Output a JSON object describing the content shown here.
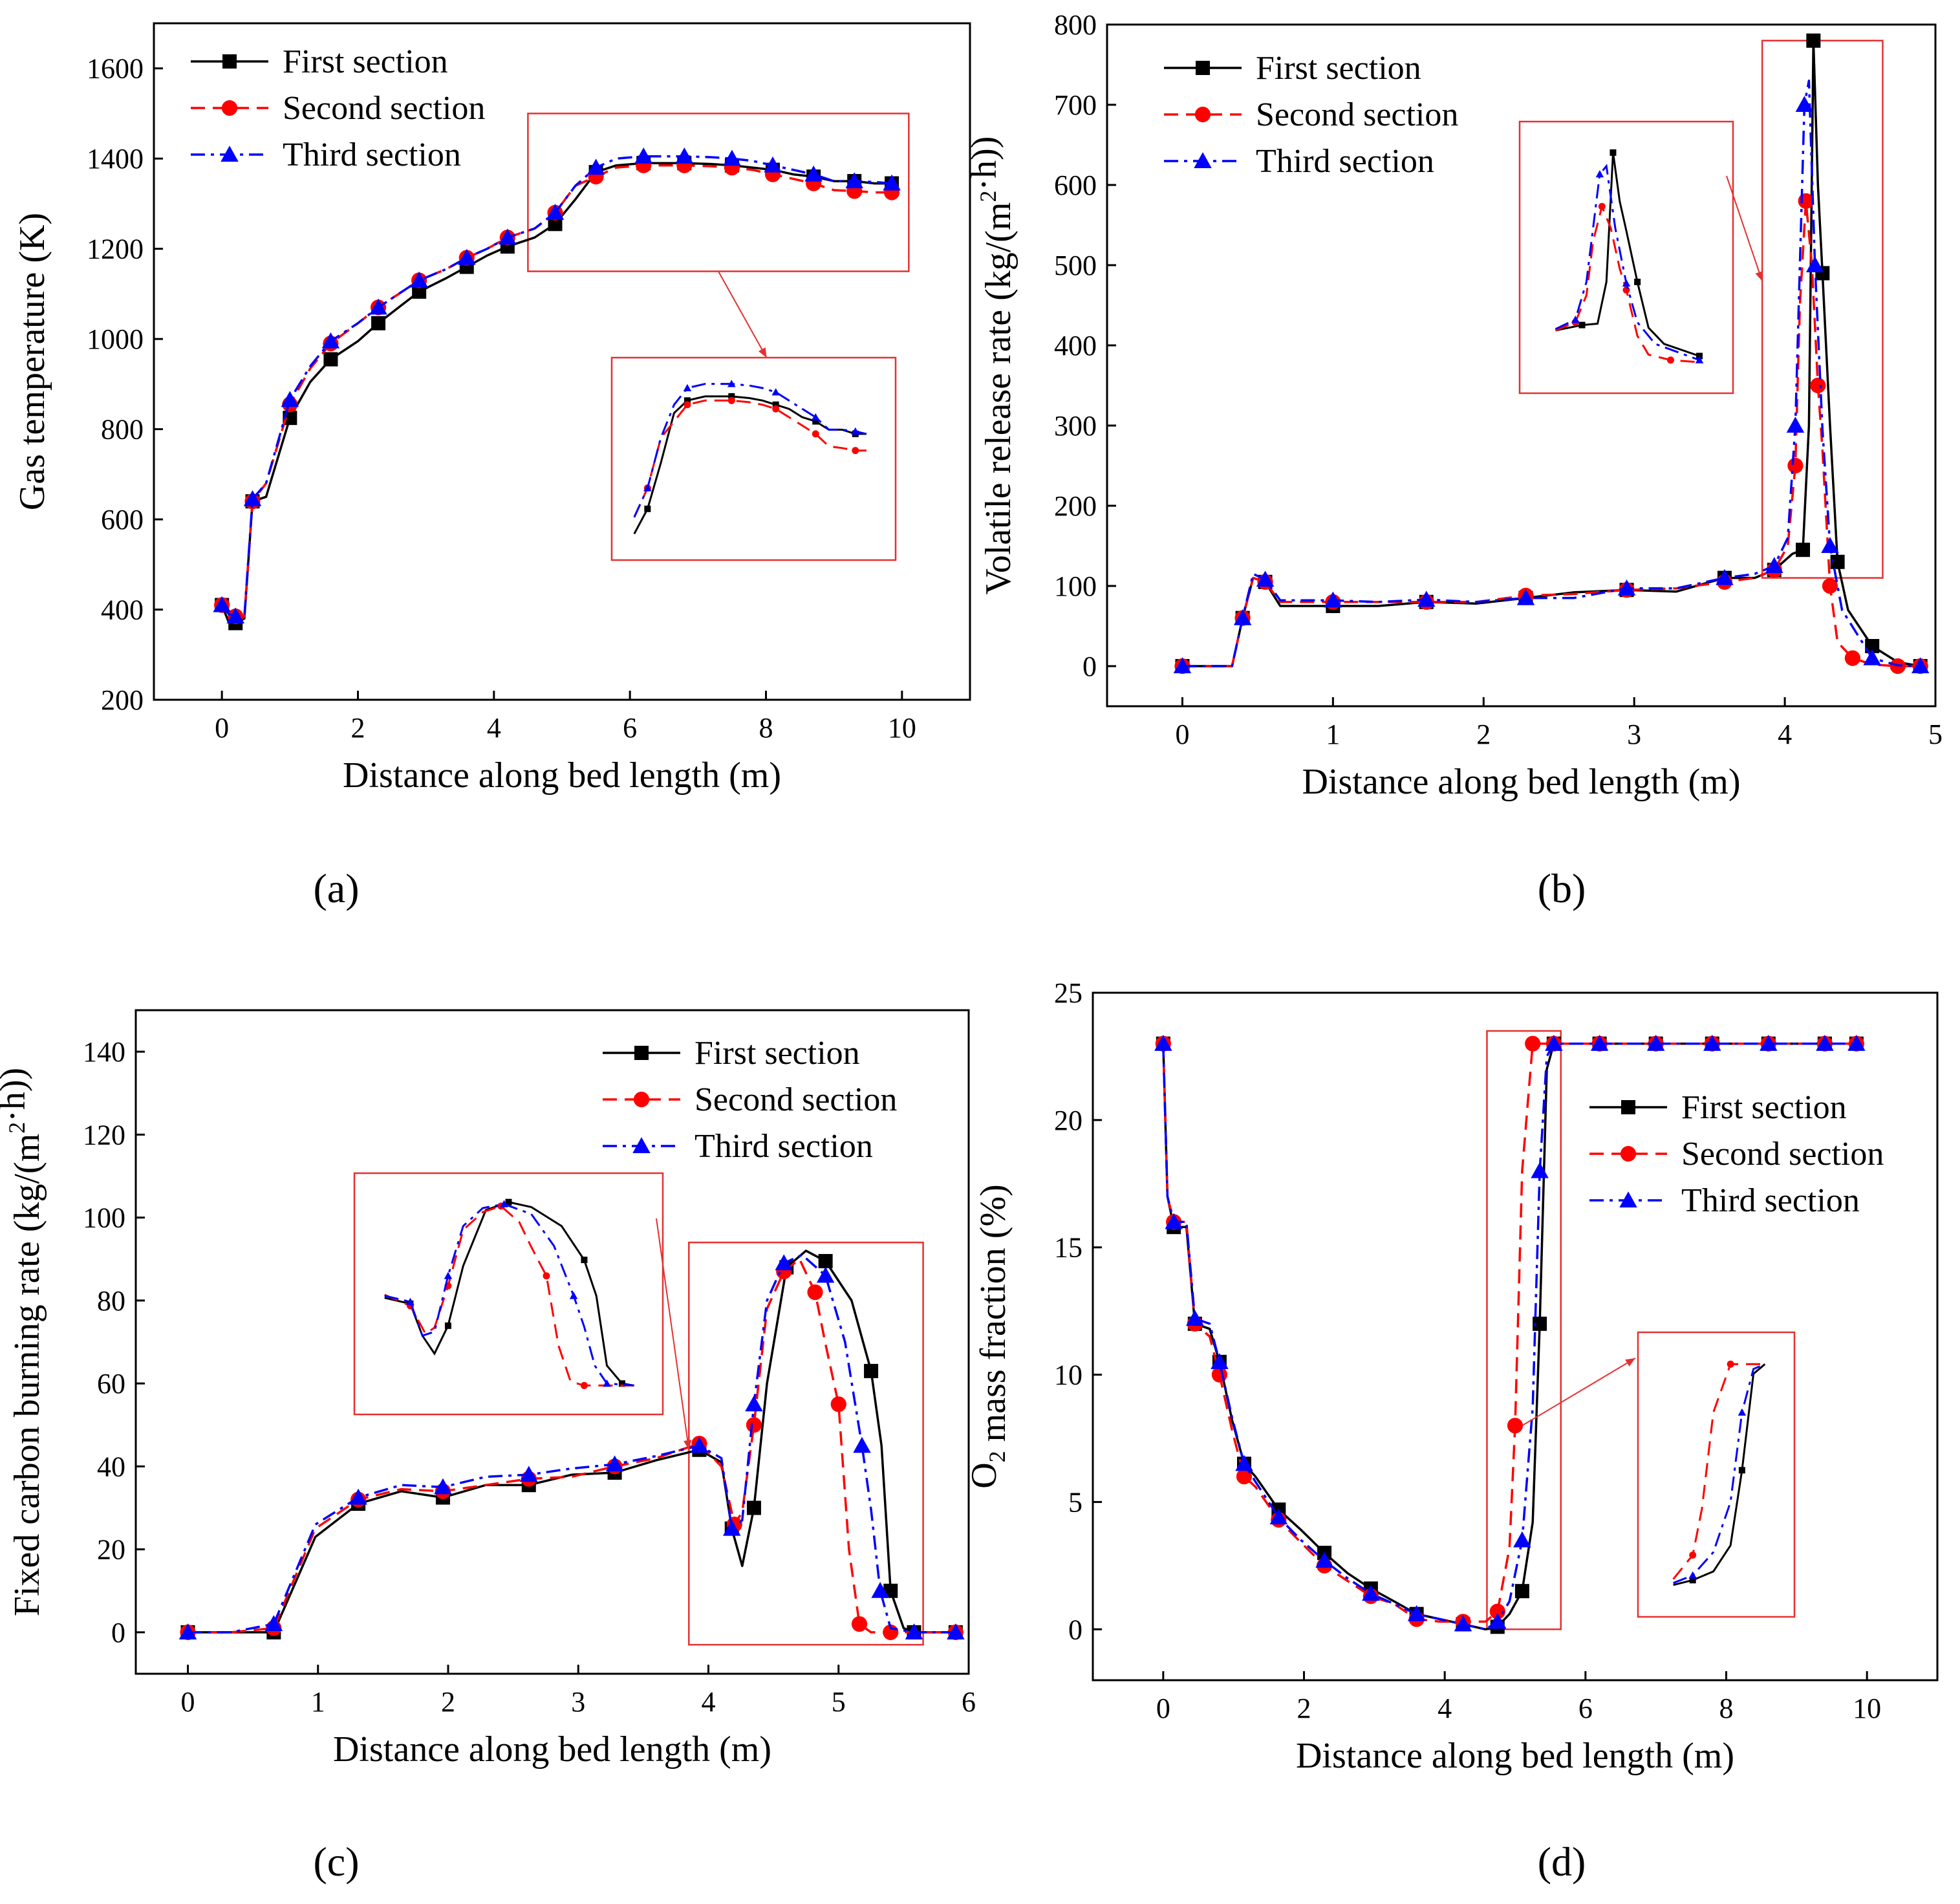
{
  "figure": {
    "caption_style": "four-panel line chart figure"
  },
  "chart_data": [
    {
      "id": "a",
      "type": "line",
      "panel_label": "(a)",
      "title": "",
      "xlabel": "Distance along bed length (m)",
      "ylabel": "Gas temperature (K)",
      "ylabel_parts": [
        {
          "t": "Gas temperature (K)"
        }
      ],
      "xlim": [
        -1,
        11
      ],
      "ylim": [
        200,
        1700
      ],
      "xticks": [
        0,
        2,
        4,
        6,
        8,
        10
      ],
      "yticks": [
        200,
        400,
        600,
        800,
        1000,
        1200,
        1400,
        1600
      ],
      "legend": {
        "position": "top-left",
        "entries": [
          "First section",
          "Second section",
          "Third section"
        ]
      },
      "series": [
        {
          "name": "First section",
          "color": "#000000",
          "dash": "solid",
          "marker": "square",
          "x": [
            0,
            0.1,
            0.2,
            0.33,
            0.45,
            0.65,
            1,
            1.3,
            1.6,
            2,
            2.3,
            2.6,
            2.9,
            3.3,
            3.6,
            3.9,
            4.2,
            4.6,
            4.9,
            5.2,
            5.5,
            5.8,
            6.2,
            6.5,
            6.8,
            7.2,
            7.5,
            7.8,
            8.1,
            8.4,
            8.7,
            9,
            9.3,
            9.6,
            9.85
          ],
          "y": [
            410,
            372,
            370,
            380,
            640,
            650,
            825,
            905,
            955,
            995,
            1035,
            1070,
            1105,
            1135,
            1160,
            1185,
            1205,
            1225,
            1255,
            1310,
            1370,
            1385,
            1390,
            1390,
            1390,
            1388,
            1385,
            1380,
            1375,
            1365,
            1360,
            1350,
            1350,
            1345,
            1345
          ]
        },
        {
          "name": "Second section",
          "color": "#ff0000",
          "dash": "dash",
          "marker": "circle",
          "x": [
            0,
            0.1,
            0.2,
            0.33,
            0.45,
            0.65,
            1,
            1.3,
            1.6,
            2,
            2.3,
            2.6,
            2.9,
            3.3,
            3.6,
            3.9,
            4.2,
            4.6,
            4.9,
            5.2,
            5.5,
            5.8,
            6.2,
            6.5,
            6.8,
            7.2,
            7.5,
            7.8,
            8.1,
            8.4,
            8.7,
            9,
            9.3,
            9.6,
            9.85
          ],
          "y": [
            410,
            390,
            385,
            385,
            640,
            680,
            855,
            935,
            990,
            1035,
            1070,
            1100,
            1130,
            1155,
            1180,
            1200,
            1225,
            1245,
            1280,
            1340,
            1360,
            1380,
            1385,
            1385,
            1385,
            1383,
            1380,
            1375,
            1365,
            1355,
            1345,
            1330,
            1328,
            1325,
            1325
          ]
        },
        {
          "name": "Third section",
          "color": "#0000ff",
          "dash": "dashdot",
          "marker": "triangle",
          "x": [
            0,
            0.1,
            0.2,
            0.33,
            0.45,
            0.65,
            1,
            1.3,
            1.6,
            2,
            2.3,
            2.6,
            2.9,
            3.3,
            3.6,
            3.9,
            4.2,
            4.6,
            4.9,
            5.2,
            5.5,
            5.8,
            6.2,
            6.5,
            6.8,
            7.2,
            7.5,
            7.8,
            8.1,
            8.4,
            8.7,
            9,
            9.3,
            9.6,
            9.85
          ],
          "y": [
            410,
            390,
            385,
            385,
            645,
            680,
            865,
            940,
            995,
            1035,
            1070,
            1100,
            1130,
            1155,
            1180,
            1200,
            1225,
            1245,
            1280,
            1340,
            1380,
            1400,
            1405,
            1405,
            1405,
            1403,
            1400,
            1395,
            1385,
            1375,
            1365,
            1350,
            1350,
            1348,
            1345
          ]
        }
      ],
      "highlight": {
        "x": [
          4.5,
          10.1
        ],
        "y": [
          1150,
          1500
        ]
      }
    },
    {
      "id": "b",
      "type": "line",
      "panel_label": "(b)",
      "title": "",
      "xlabel": "Distance along bed length (m)",
      "ylabel": "Volatile release rate (kg/(m2·h))",
      "ylabel_parts": [
        {
          "t": "Volatile release rate (kg/(m"
        },
        {
          "t": "2",
          "sup": true
        },
        {
          "t": "·h))"
        }
      ],
      "xlim": [
        -0.5,
        5
      ],
      "ylim": [
        -50,
        800
      ],
      "xticks": [
        0,
        1,
        2,
        3,
        4,
        5
      ],
      "yticks": [
        0,
        100,
        200,
        300,
        400,
        500,
        600,
        700,
        800
      ],
      "legend": {
        "position": "top-left",
        "entries": [
          "First section",
          "Second section",
          "Third section"
        ]
      },
      "series": [
        {
          "name": "First section",
          "color": "#000000",
          "dash": "solid",
          "marker": "square",
          "x": [
            0,
            0.33,
            0.4,
            0.47,
            0.55,
            0.65,
            1,
            1.3,
            1.62,
            1.95,
            2.28,
            2.6,
            2.95,
            3.28,
            3.6,
            3.8,
            3.93,
            4.05,
            4.12,
            4.16,
            4.19,
            4.22,
            4.25,
            4.3,
            4.35,
            4.42,
            4.58,
            4.75,
            4.9
          ],
          "y": [
            0,
            0,
            60,
            110,
            105,
            75,
            75,
            75,
            80,
            78,
            85,
            92,
            95,
            93,
            110,
            110,
            120,
            140,
            145,
            300,
            780,
            600,
            490,
            300,
            130,
            70,
            25,
            5,
            0
          ]
        },
        {
          "name": "Second section",
          "color": "#ff0000",
          "dash": "dash",
          "marker": "circle",
          "x": [
            0,
            0.33,
            0.4,
            0.47,
            0.55,
            0.65,
            1,
            1.3,
            1.62,
            1.95,
            2.28,
            2.6,
            2.95,
            3.28,
            3.6,
            3.8,
            3.93,
            4.02,
            4.07,
            4.1,
            4.14,
            4.18,
            4.22,
            4.25,
            4.3,
            4.35,
            4.45,
            4.58,
            4.75,
            4.9
          ],
          "y": [
            0,
            0,
            60,
            110,
            105,
            80,
            80,
            80,
            80,
            80,
            88,
            90,
            95,
            97,
            105,
            110,
            120,
            150,
            250,
            450,
            580,
            500,
            350,
            270,
            100,
            30,
            10,
            2,
            0,
            0
          ]
        },
        {
          "name": "Third section",
          "color": "#0000ff",
          "dash": "dashdot",
          "marker": "triangle",
          "x": [
            0,
            0.33,
            0.4,
            0.47,
            0.55,
            0.65,
            1,
            1.3,
            1.62,
            1.95,
            2.28,
            2.6,
            2.95,
            3.28,
            3.6,
            3.8,
            3.93,
            4.02,
            4.07,
            4.1,
            4.13,
            4.16,
            4.2,
            4.25,
            4.3,
            4.38,
            4.58,
            4.75,
            4.9
          ],
          "y": [
            0,
            0,
            60,
            115,
            108,
            82,
            82,
            80,
            83,
            80,
            85,
            85,
            97,
            97,
            110,
            115,
            125,
            160,
            300,
            500,
            700,
            730,
            500,
            295,
            150,
            70,
            10,
            1,
            0
          ]
        }
      ],
      "highlight": {
        "x": [
          3.85,
          4.65
        ],
        "y": [
          110,
          780
        ]
      }
    },
    {
      "id": "c",
      "type": "line",
      "panel_label": "(c)",
      "title": "",
      "xlabel": "Distance along bed length (m)",
      "ylabel": "Fixed carbon burning rate (kg/(m2·h))",
      "ylabel_parts": [
        {
          "t": "Fixed carbon burning rate (kg/(m"
        },
        {
          "t": "2",
          "sup": true
        },
        {
          "t": "·h))"
        }
      ],
      "xlim": [
        -0.4,
        6
      ],
      "ylim": [
        -10,
        150
      ],
      "xticks": [
        0,
        1,
        2,
        3,
        4,
        5,
        6
      ],
      "yticks": [
        0,
        20,
        40,
        60,
        80,
        100,
        120,
        140
      ],
      "legend": {
        "position": "top-right",
        "entries": [
          "First section",
          "Second section",
          "Third section"
        ]
      },
      "series": [
        {
          "name": "First section",
          "color": "#000000",
          "dash": "solid",
          "marker": "square",
          "x": [
            0,
            0.33,
            0.66,
            0.98,
            1.31,
            1.64,
            1.96,
            2.29,
            2.62,
            2.95,
            3.28,
            3.6,
            3.93,
            4.1,
            4.18,
            4.26,
            4.35,
            4.45,
            4.6,
            4.75,
            4.9,
            5.1,
            5.25,
            5.33,
            5.4,
            5.5,
            5.58,
            5.9
          ],
          "y": [
            0,
            0,
            0,
            23,
            31,
            34,
            32.5,
            35.5,
            35.5,
            38,
            38.5,
            41.5,
            44,
            41,
            25,
            16,
            30,
            60,
            88,
            92,
            89.5,
            80,
            63,
            45,
            10,
            1,
            0,
            0
          ]
        },
        {
          "name": "Second section",
          "color": "#ff0000",
          "dash": "dash",
          "marker": "circle",
          "x": [
            0,
            0.33,
            0.66,
            0.98,
            1.31,
            1.64,
            1.96,
            2.29,
            2.62,
            2.95,
            3.28,
            3.6,
            3.93,
            4.1,
            4.2,
            4.26,
            4.35,
            4.45,
            4.58,
            4.7,
            4.82,
            4.9,
            5.0,
            5.08,
            5.16,
            5.25,
            5.4,
            5.58,
            5.9
          ],
          "y": [
            0,
            0,
            1,
            25,
            32,
            34.5,
            34,
            35.5,
            37,
            37.5,
            40,
            42,
            45.5,
            40,
            26,
            29,
            50,
            78,
            87,
            90,
            82,
            69.5,
            55,
            20,
            2,
            0,
            0,
            0,
            0
          ]
        },
        {
          "name": "Third section",
          "color": "#0000ff",
          "dash": "dashdot",
          "marker": "triangle",
          "x": [
            0,
            0.33,
            0.66,
            0.98,
            1.31,
            1.64,
            1.96,
            2.29,
            2.62,
            2.95,
            3.28,
            3.6,
            3.93,
            4.1,
            4.18,
            4.26,
            4.35,
            4.45,
            4.58,
            4.72,
            4.9,
            5.05,
            5.18,
            5.25,
            5.32,
            5.4,
            5.58,
            5.9
          ],
          "y": [
            0,
            0,
            2,
            26,
            32.5,
            35.5,
            35,
            37.5,
            38,
            39.5,
            40.5,
            42.5,
            45,
            42,
            25,
            27,
            55,
            80,
            89,
            91,
            86,
            70,
            45,
            29.5,
            10,
            1,
            0,
            0
          ]
        }
      ],
      "highlight": {
        "x": [
          3.85,
          5.65
        ],
        "y": [
          -3,
          94
        ]
      }
    },
    {
      "id": "d",
      "type": "line",
      "panel_label": "(d)",
      "title": "",
      "xlabel": "Distance along bed length (m)",
      "ylabel": "O2 mass fraction (%)",
      "ylabel_parts": [
        {
          "t": "O"
        },
        {
          "t": "2",
          "sub": true
        },
        {
          "t": " mass fraction (%)"
        }
      ],
      "xlim": [
        -1,
        11
      ],
      "ylim": [
        -2,
        25
      ],
      "xticks": [
        0,
        2,
        4,
        6,
        8,
        10
      ],
      "yticks": [
        0,
        5,
        10,
        15,
        20,
        25
      ],
      "legend": {
        "position": "right",
        "entries": [
          "First section",
          "Second section",
          "Third section"
        ]
      },
      "series": [
        {
          "name": "First section",
          "color": "#000000",
          "dash": "solid",
          "marker": "square",
          "x": [
            0,
            0.06,
            0.15,
            0.33,
            0.45,
            0.66,
            0.8,
            0.98,
            1.15,
            1.31,
            1.64,
            1.96,
            2.29,
            2.62,
            2.95,
            3.28,
            3.6,
            3.93,
            4.26,
            4.58,
            4.75,
            4.92,
            5.1,
            5.25,
            5.35,
            5.45,
            5.55,
            5.9,
            6.2,
            6.6,
            7,
            7.4,
            7.8,
            8.2,
            8.6,
            9,
            9.4,
            9.85
          ],
          "y": [
            23,
            17,
            15.8,
            15.8,
            12,
            11.8,
            10.5,
            8.2,
            6.5,
            6,
            4.7,
            3.9,
            3,
            2.2,
            1.6,
            1.1,
            0.6,
            0.4,
            0.2,
            0,
            0.1,
            0.6,
            1.5,
            4.2,
            12,
            22,
            23,
            23,
            23,
            23,
            23,
            23,
            23,
            23,
            23,
            23,
            23,
            23
          ]
        },
        {
          "name": "Second section",
          "color": "#ff0000",
          "dash": "dash",
          "marker": "circle",
          "x": [
            0,
            0.06,
            0.15,
            0.33,
            0.45,
            0.66,
            0.8,
            0.98,
            1.15,
            1.31,
            1.64,
            1.96,
            2.29,
            2.62,
            2.95,
            3.28,
            3.6,
            3.93,
            4.26,
            4.58,
            4.75,
            4.92,
            5.0,
            5.1,
            5.25,
            5.4,
            5.55,
            5.9,
            6.2,
            6.6,
            7,
            7.4,
            7.8,
            8.2,
            8.6,
            9,
            9.4,
            9.85
          ],
          "y": [
            23,
            17,
            16,
            16,
            12,
            11.5,
            10,
            7.8,
            6,
            5.6,
            4.3,
            3.4,
            2.5,
            1.9,
            1.3,
            1.0,
            0.4,
            0.3,
            0.3,
            0.3,
            0.7,
            3.2,
            8,
            18,
            23,
            23,
            23,
            23,
            23,
            23,
            23,
            23,
            23,
            23,
            23,
            23,
            23,
            23
          ]
        },
        {
          "name": "Third section",
          "color": "#0000ff",
          "dash": "dashdot",
          "marker": "triangle",
          "x": [
            0,
            0.06,
            0.15,
            0.33,
            0.45,
            0.66,
            0.8,
            0.98,
            1.15,
            1.31,
            1.64,
            1.96,
            2.29,
            2.62,
            2.95,
            3.28,
            3.6,
            3.93,
            4.26,
            4.58,
            4.75,
            4.92,
            5.1,
            5.25,
            5.35,
            5.45,
            5.55,
            5.9,
            6.2,
            6.6,
            7,
            7.4,
            7.8,
            8.2,
            8.6,
            9,
            9.4,
            9.85
          ],
          "y": [
            23,
            17,
            16,
            16,
            12.2,
            12,
            10.5,
            8.3,
            6.5,
            5.8,
            4.4,
            3.5,
            2.7,
            2.0,
            1.4,
            1.0,
            0.6,
            0.4,
            0.2,
            0,
            0.3,
            1.1,
            3.5,
            8.7,
            18,
            22.5,
            23,
            23,
            23,
            23,
            23,
            23,
            23,
            23,
            23,
            23,
            23,
            23
          ]
        }
      ],
      "highlight": {
        "x": [
          4.6,
          5.65
        ],
        "y": [
          0,
          23.5
        ]
      }
    }
  ]
}
